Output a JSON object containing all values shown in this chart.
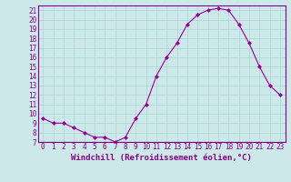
{
  "x": [
    0,
    1,
    2,
    3,
    4,
    5,
    6,
    7,
    8,
    9,
    10,
    11,
    12,
    13,
    14,
    15,
    16,
    17,
    18,
    19,
    20,
    21,
    22,
    23
  ],
  "y": [
    9.5,
    9.0,
    9.0,
    8.5,
    8.0,
    7.5,
    7.5,
    7.0,
    7.5,
    9.5,
    11.0,
    14.0,
    16.0,
    17.5,
    19.5,
    20.5,
    21.0,
    21.2,
    21.0,
    19.5,
    17.5,
    15.0,
    13.0,
    12.0
  ],
  "line_color": "#990099",
  "marker": "D",
  "marker_size": 2.0,
  "bg_color": "#cce8e8",
  "grid_color": "#b0d8d8",
  "xlabel": "Windchill (Refroidissement éolien,°C)",
  "ylim": [
    7,
    21.5
  ],
  "xlim": [
    -0.5,
    23.5
  ],
  "yticks": [
    7,
    8,
    9,
    10,
    11,
    12,
    13,
    14,
    15,
    16,
    17,
    18,
    19,
    20,
    21
  ],
  "xticks": [
    0,
    1,
    2,
    3,
    4,
    5,
    6,
    7,
    8,
    9,
    10,
    11,
    12,
    13,
    14,
    15,
    16,
    17,
    18,
    19,
    20,
    21,
    22,
    23
  ],
  "tick_fontsize": 5.5,
  "xlabel_fontsize": 6.5,
  "axis_color": "#880088",
  "spine_color": "#880088"
}
